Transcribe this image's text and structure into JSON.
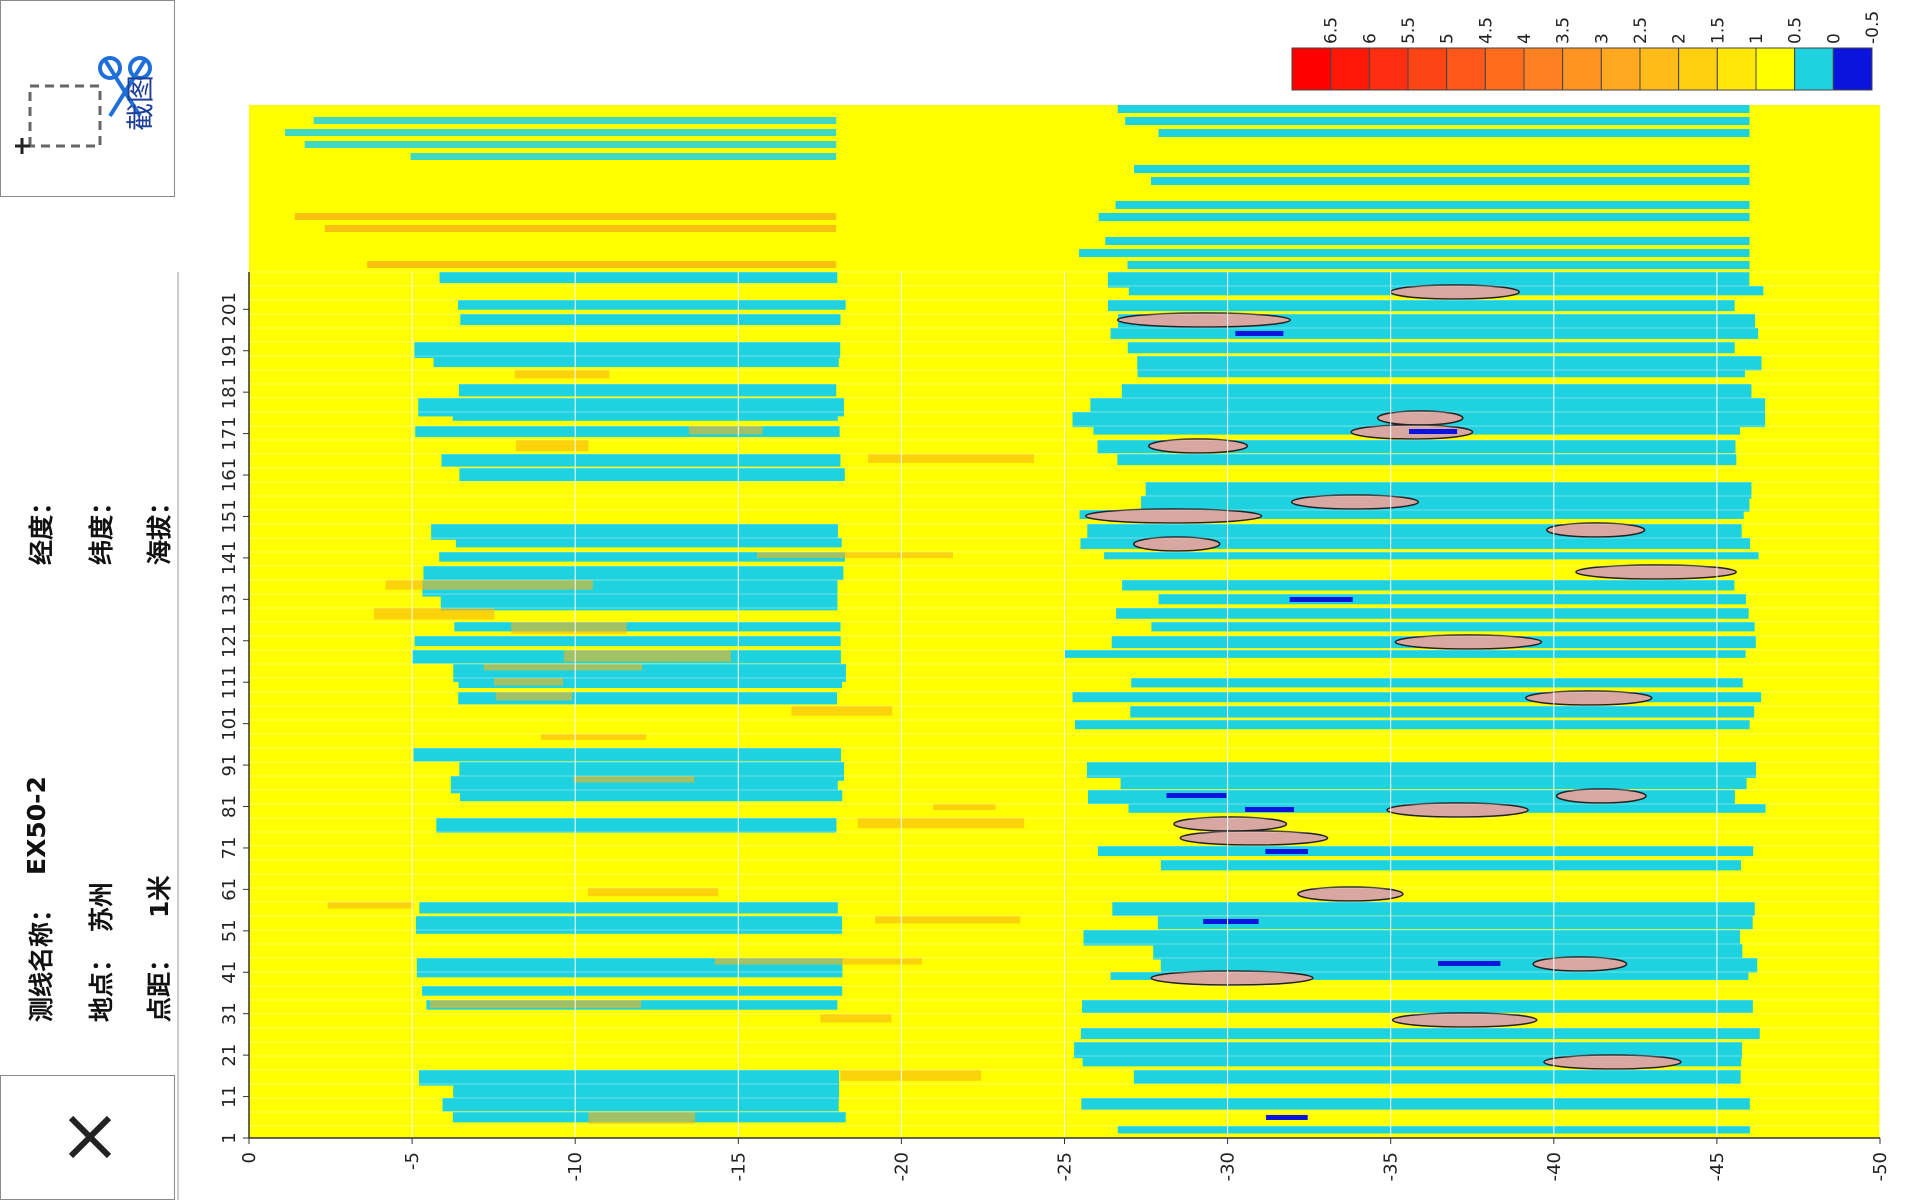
{
  "toolbar": {
    "screenshot_label": "截图",
    "close_label": "✕"
  },
  "info": {
    "line_name_label": "测线名称：",
    "line_name_value": "EX50-2",
    "location_label": "地点：",
    "location_value": "苏州",
    "spacing_label": "点距：",
    "spacing_value": "1米",
    "longitude_label": "经度：",
    "latitude_label": "纬度：",
    "altitude_label": "海拔："
  },
  "colors": {
    "yellow": "#ffff00",
    "cyan": "#1ed2e0",
    "orange": "#f6b613",
    "blue": "#0a14dc",
    "pink": "#d9a7a2"
  },
  "chart_data": {
    "type": "heatmap",
    "title": "",
    "xlabel": "",
    "ylabel": "",
    "x_ticks": [
      "1",
      "11",
      "21",
      "31",
      "41",
      "51",
      "61",
      "71",
      "81",
      "91",
      "101",
      "111",
      "121",
      "131",
      "141",
      "151",
      "161",
      "171",
      "181",
      "191",
      "201"
    ],
    "y_ticks": [
      "0",
      "-5",
      "-10",
      "-15",
      "-20",
      "-25",
      "-30",
      "-35",
      "-40",
      "-45",
      "-50"
    ],
    "ylim": [
      0,
      -50
    ],
    "xlim": [
      1,
      210
    ],
    "colorbar": {
      "levels": [
        "6.5",
        "6",
        "5.5",
        "5",
        "4.5",
        "4",
        "3.5",
        "3",
        "2.5",
        "2",
        "1.5",
        "1",
        "0.5",
        "0",
        "-0.5"
      ],
      "colors": [
        "#ff0000",
        "#ff1808",
        "#ff2e10",
        "#ff4415",
        "#ff581a",
        "#ff6c1e",
        "#ff8020",
        "#ff9422",
        "#ffa820",
        "#ffbc18",
        "#ffd010",
        "#ffe808",
        "#ffff00",
        "#1ed2e0",
        "#0a14dc"
      ]
    },
    "grid": true
  }
}
